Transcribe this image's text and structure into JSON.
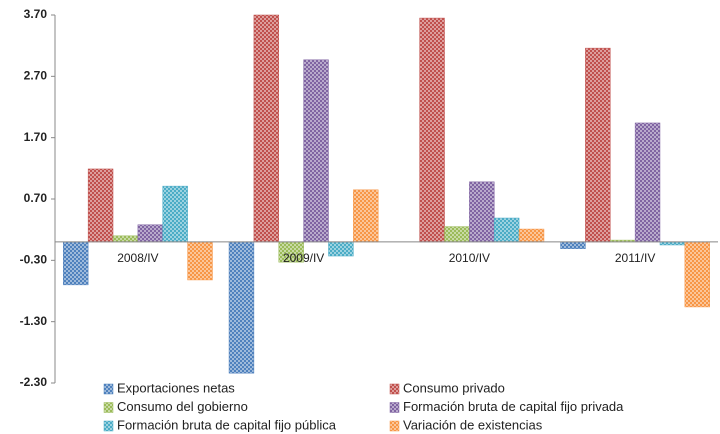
{
  "chart_data": {
    "type": "bar",
    "categories": [
      "2008/IV",
      "2009/IV",
      "2010/IV",
      "2011/IV"
    ],
    "series": [
      {
        "name": "Exportaciones netas",
        "color": "#4f81bd",
        "values": [
          -0.7,
          -2.14,
          0.0,
          -0.11
        ]
      },
      {
        "name": "Consumo privado",
        "color": "#c0504d",
        "values": [
          1.19,
          3.7,
          3.65,
          3.16
        ]
      },
      {
        "name": "Consumo del gobierno",
        "color": "#9bbb59",
        "values": [
          0.1,
          -0.33,
          0.25,
          0.03
        ]
      },
      {
        "name": "Formación bruta de capital fijo privada",
        "color": "#8064a2",
        "values": [
          0.28,
          2.97,
          0.98,
          1.94
        ]
      },
      {
        "name": "Formación bruta de capital fijo pública",
        "color": "#4bacc6",
        "values": [
          0.91,
          -0.23,
          0.39,
          -0.05
        ]
      },
      {
        "name": "Variación de existencias",
        "color": "#f79646",
        "values": [
          -0.62,
          0.85,
          0.21,
          -1.06
        ]
      }
    ],
    "ylim": [
      -2.3,
      3.7
    ],
    "yticks": [
      {
        "value": -2.3,
        "label": "-2.30"
      },
      {
        "value": -1.3,
        "label": "-1.30"
      },
      {
        "value": -0.3,
        "label": "-0.30"
      },
      {
        "value": 0.7,
        "label": "0.70"
      },
      {
        "value": 1.7,
        "label": "1.70"
      },
      {
        "value": 2.7,
        "label": "2.70"
      },
      {
        "value": 3.7,
        "label": "3.70"
      }
    ],
    "grid": false
  }
}
